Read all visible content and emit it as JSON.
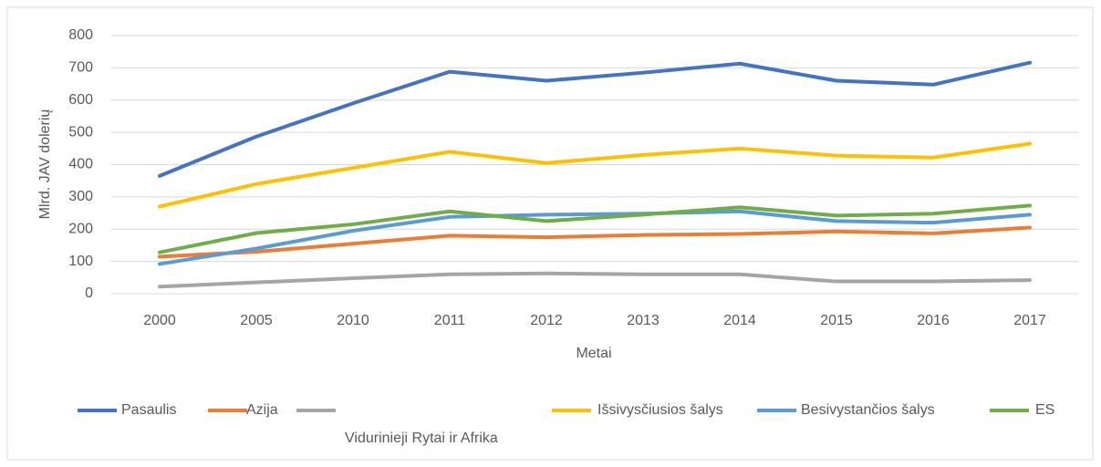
{
  "chart_data": {
    "type": "line",
    "categories": [
      "2000",
      "2005",
      "2010",
      "2011",
      "2012",
      "2013",
      "2014",
      "2015",
      "2016",
      "2017"
    ],
    "series": [
      {
        "name": "Pasaulis",
        "color": "#4472c4",
        "values": [
          365,
          487,
          590,
          688,
          660,
          685,
          713,
          660,
          648,
          716
        ]
      },
      {
        "name": "Azija",
        "color": "#ed7d31",
        "values": [
          115,
          130,
          155,
          180,
          175,
          182,
          185,
          193,
          187,
          205
        ]
      },
      {
        "name": "Vidurinieji Rytai ir Afrika",
        "color": "#a5a5a5",
        "values": [
          22,
          35,
          48,
          60,
          63,
          60,
          60,
          38,
          38,
          42
        ]
      },
      {
        "name": "Išsivysčiusios šalys",
        "color": "#ffc000",
        "values": [
          270,
          340,
          390,
          440,
          405,
          430,
          450,
          428,
          422,
          465
        ]
      },
      {
        "name": "Besivystančios šalys",
        "color": "#5b9bd5",
        "values": [
          92,
          140,
          195,
          238,
          245,
          248,
          255,
          225,
          220,
          245
        ]
      },
      {
        "name": "ES",
        "color": "#70ad47",
        "values": [
          128,
          188,
          215,
          255,
          225,
          245,
          268,
          242,
          248,
          273
        ]
      }
    ],
    "xlabel": "Metai",
    "ylabel": "Mlrd. JAV dolerių",
    "ylim": [
      0,
      800
    ],
    "yticks": [
      0,
      100,
      200,
      300,
      400,
      500,
      600,
      700,
      800
    ],
    "grid": true,
    "legend": "bottom"
  }
}
